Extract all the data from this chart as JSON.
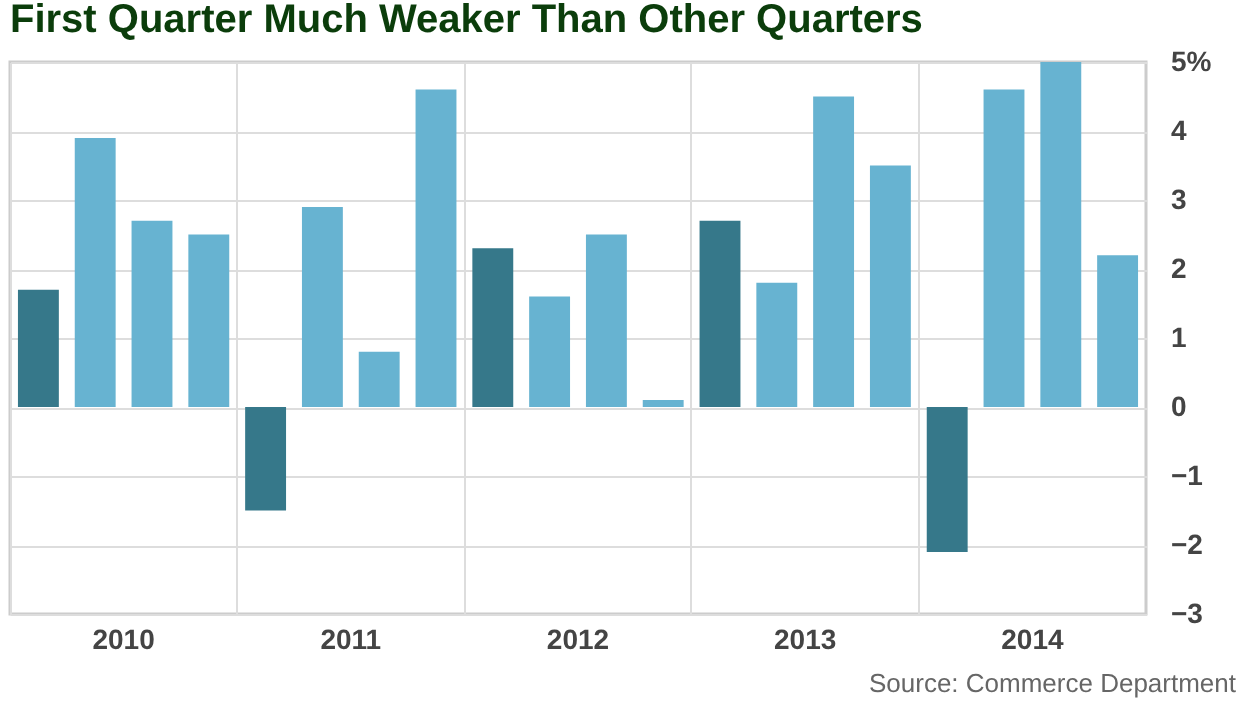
{
  "chart_data": {
    "type": "bar",
    "title": "First Quarter Much Weaker Than Other Quarters",
    "categories": [
      "2010",
      "2011",
      "2012",
      "2013",
      "2014"
    ],
    "series": [
      {
        "color": "#36788a",
        "values": [
          1.7,
          -1.5,
          2.3,
          2.7,
          -2.1
        ]
      },
      {
        "color": "#67b3d1",
        "values": [
          3.9,
          2.9,
          1.6,
          1.8,
          4.6
        ]
      },
      {
        "color": "#67b3d1",
        "values": [
          2.7,
          0.8,
          2.5,
          4.5,
          5.0
        ]
      },
      {
        "color": "#67b3d1",
        "values": [
          2.5,
          4.6,
          0.1,
          3.5,
          2.2
        ]
      }
    ],
    "ylim": [
      -3,
      5
    ],
    "yticks": [
      -3,
      -2,
      -1,
      0,
      1,
      2,
      3,
      4,
      {
        "value": 5,
        "label": "5%"
      }
    ],
    "grid": true,
    "legend": false,
    "annotations": [
      "Source: Commerce Department"
    ]
  }
}
